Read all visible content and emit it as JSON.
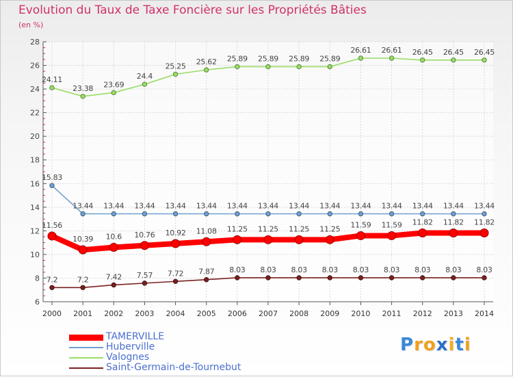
{
  "chart_data": {
    "type": "line",
    "title": "Evolution du Taux de Taxe Foncière sur les Propriétés Bâties",
    "ylabel": "(en %)",
    "xlabel": "",
    "ylim": [
      6,
      28
    ],
    "yticks": [
      6,
      8,
      10,
      12,
      14,
      16,
      18,
      20,
      22,
      24,
      26,
      28
    ],
    "grid": true,
    "legend_position": "bottom-left",
    "categories": [
      "2000",
      "2001",
      "2002",
      "2003",
      "2004",
      "2005",
      "2006",
      "2007",
      "2008",
      "2009",
      "2010",
      "2011",
      "2012",
      "2013",
      "2014"
    ],
    "series": [
      {
        "name": "TAMERVILLE",
        "color": "#ff0000",
        "emphasis": true,
        "values": [
          11.56,
          10.39,
          10.6,
          10.76,
          10.92,
          11.08,
          11.25,
          11.25,
          11.25,
          11.25,
          11.59,
          11.59,
          11.82,
          11.82,
          11.82
        ],
        "labels": [
          "11.56",
          "10.39",
          "10.6",
          "10.76",
          "10.92",
          "11.08",
          "11.25",
          "11.25",
          "11.25",
          "11.25",
          "11.59",
          "11.59",
          "11.82",
          "11.82",
          "11.82"
        ]
      },
      {
        "name": "Huberville",
        "color": "#6f9fcf",
        "emphasis": false,
        "values": [
          15.83,
          13.44,
          13.44,
          13.44,
          13.44,
          13.44,
          13.44,
          13.44,
          13.44,
          13.44,
          13.44,
          13.44,
          13.44,
          13.44,
          13.44
        ],
        "labels": [
          "15.83",
          "13.44",
          "13.44",
          "13.44",
          "13.44",
          "13.44",
          "13.44",
          "13.44",
          "13.44",
          "13.44",
          "13.44",
          "13.44",
          "13.44",
          "13.44",
          "13.44"
        ]
      },
      {
        "name": "Valognes",
        "color": "#99dd66",
        "emphasis": false,
        "values": [
          24.11,
          23.38,
          23.69,
          24.4,
          25.25,
          25.62,
          25.89,
          25.89,
          25.89,
          25.89,
          26.61,
          26.61,
          26.45,
          26.45,
          26.45
        ],
        "labels": [
          "24.11",
          "23.38",
          "23.69",
          "24.4",
          "25.25",
          "25.62",
          "25.89",
          "25.89",
          "25.89",
          "25.89",
          "26.61",
          "26.61",
          "26.45",
          "26.45",
          "26.45"
        ]
      },
      {
        "name": "Saint-Germain-de-Tournebut",
        "color": "#7a2020",
        "emphasis": false,
        "values": [
          7.2,
          7.2,
          7.42,
          7.57,
          7.72,
          7.87,
          8.03,
          8.03,
          8.03,
          8.03,
          8.03,
          8.03,
          8.03,
          8.03,
          8.03
        ],
        "labels": [
          "7.2",
          "7.2",
          "7.42",
          "7.57",
          "7.72",
          "7.87",
          "8.03",
          "8.03",
          "8.03",
          "8.03",
          "8.03",
          "8.03",
          "8.03",
          "8.03",
          "8.03"
        ]
      }
    ]
  },
  "logo": {
    "text": "Proxiti",
    "letters": [
      "P",
      "r",
      "o",
      "x",
      "i",
      "t",
      "i"
    ],
    "colors": [
      "#3a88d8",
      "#f0a020",
      "#f0a020",
      "#2a70c8",
      "#f0b020",
      "#3a88d8",
      "#f0a020"
    ]
  }
}
